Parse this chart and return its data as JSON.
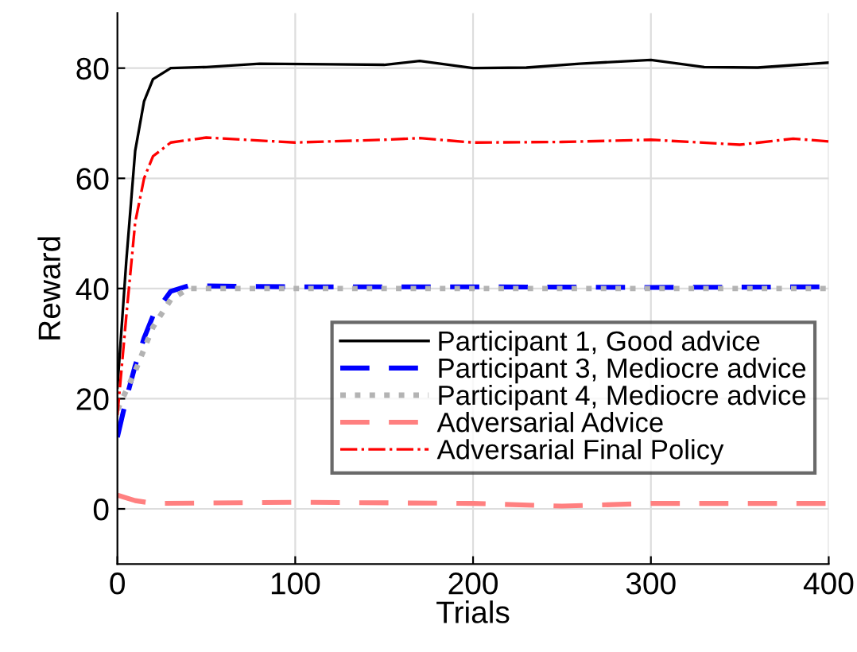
{
  "chart_data": {
    "type": "line",
    "xlabel": "Trials",
    "ylabel": "Reward",
    "xlim": [
      0,
      400
    ],
    "xticks": [
      0,
      100,
      200,
      300,
      400
    ],
    "ylim": [
      -10,
      90
    ],
    "yticks": [
      0,
      20,
      40,
      60,
      80
    ],
    "grid": true,
    "legend": "lower right",
    "marker": "none",
    "series": [
      {
        "name": "Participant 1, Good advice",
        "color": "#000000",
        "line_style": "solid",
        "x": [
          0,
          5,
          10,
          15,
          20,
          30,
          50,
          80,
          120,
          150,
          170,
          200,
          230,
          260,
          300,
          330,
          360,
          400
        ],
        "values": [
          22,
          45,
          65,
          74,
          78,
          80,
          80.2,
          80.8,
          80.7,
          80.6,
          81.3,
          80,
          80.1,
          80.8,
          81.5,
          80.2,
          80.1,
          81
        ]
      },
      {
        "name": "Participant 3, Mediocre advice",
        "color": "#0000ff",
        "line_style": "dashed",
        "x": [
          0,
          5,
          10,
          15,
          20,
          30,
          40,
          100,
          200,
          300,
          400
        ],
        "values": [
          13,
          20,
          26,
          31,
          35,
          39.5,
          40.5,
          40.3,
          40.3,
          40.2,
          40.3
        ]
      },
      {
        "name": "Participant 4, Mediocre advice",
        "color": "#b3b3b3",
        "line_style": "dotted",
        "x": [
          0,
          10,
          20,
          30,
          40,
          400
        ],
        "values": [
          18,
          25,
          33,
          38,
          40,
          40
        ]
      },
      {
        "name": "Adversarial Advice",
        "color": "#ff8080",
        "line_style": "dashed",
        "x": [
          0,
          10,
          20,
          100,
          200,
          250,
          300,
          400
        ],
        "values": [
          2.5,
          1.5,
          1,
          1.2,
          1,
          0.5,
          1,
          1
        ]
      },
      {
        "name": "Adversarial Final Policy",
        "color": "#ff0000",
        "line_style": "dashdot",
        "x": [
          0,
          5,
          10,
          15,
          20,
          30,
          50,
          100,
          150,
          170,
          200,
          250,
          300,
          350,
          380,
          400
        ],
        "values": [
          17,
          35,
          52,
          60,
          64,
          66.5,
          67.4,
          66.5,
          67,
          67.3,
          66.5,
          66.6,
          67,
          66.1,
          67.2,
          66.7
        ]
      }
    ]
  }
}
